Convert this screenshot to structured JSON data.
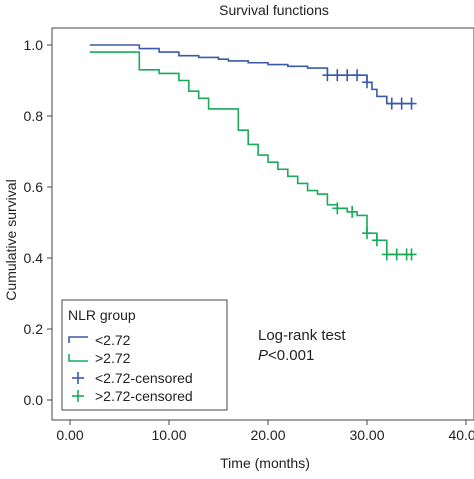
{
  "chart_data": {
    "type": "line",
    "subtype": "kaplan-meier",
    "title": "Survival functions",
    "xlabel": "Time (months)",
    "ylabel": "Cumulative survival",
    "xlim": [
      0,
      40
    ],
    "ylim": [
      0,
      1
    ],
    "x_ticks": [
      "0.00",
      "10.00",
      "20.00",
      "30.00",
      "40.00"
    ],
    "y_ticks": [
      "0.0",
      "0.2",
      "0.4",
      "0.6",
      "0.8",
      "1.0"
    ],
    "grid": false,
    "legend": {
      "title": "NLR group",
      "placement": "bottom-left",
      "entries": [
        "<2.72",
        ">2.72",
        "<2.72-censored",
        ">2.72-censored"
      ]
    },
    "annotation": {
      "line1": "Log-rank test",
      "p_label": "P",
      "p_value": "<0.001"
    },
    "series": [
      {
        "name": "<2.72",
        "color": "#3a5aa8",
        "steps": [
          [
            2,
            1.0
          ],
          [
            7,
            0.99
          ],
          [
            9,
            0.98
          ],
          [
            11,
            0.97
          ],
          [
            13,
            0.965
          ],
          [
            15,
            0.96
          ],
          [
            16,
            0.955
          ],
          [
            18,
            0.95
          ],
          [
            20,
            0.945
          ],
          [
            22,
            0.94
          ],
          [
            24,
            0.935
          ],
          [
            26,
            0.915
          ],
          [
            27,
            0.915
          ],
          [
            28,
            0.915
          ],
          [
            29,
            0.915
          ],
          [
            30,
            0.915
          ],
          [
            30,
            0.895
          ],
          [
            30.5,
            0.875
          ],
          [
            31,
            0.855
          ],
          [
            32,
            0.835
          ],
          [
            34.5,
            0.835
          ]
        ],
        "censored": [
          26,
          27,
          28,
          29,
          30,
          32.5,
          33.5,
          34.5
        ]
      },
      {
        "name": ">2.72",
        "color": "#1aaa5a",
        "steps": [
          [
            2,
            0.98
          ],
          [
            7,
            0.98
          ],
          [
            7,
            0.93
          ],
          [
            9,
            0.92
          ],
          [
            11,
            0.9
          ],
          [
            12,
            0.87
          ],
          [
            13,
            0.85
          ],
          [
            14,
            0.82
          ],
          [
            17,
            0.8
          ],
          [
            17,
            0.76
          ],
          [
            18,
            0.72
          ],
          [
            19,
            0.69
          ],
          [
            20,
            0.67
          ],
          [
            21,
            0.65
          ],
          [
            22,
            0.63
          ],
          [
            23,
            0.61
          ],
          [
            24,
            0.59
          ],
          [
            25,
            0.58
          ],
          [
            26,
            0.55
          ],
          [
            27,
            0.54
          ],
          [
            28,
            0.53
          ],
          [
            29,
            0.52
          ],
          [
            30,
            0.5
          ],
          [
            30,
            0.47
          ],
          [
            31,
            0.45
          ],
          [
            32,
            0.43
          ],
          [
            32,
            0.41
          ],
          [
            34.5,
            0.41
          ]
        ],
        "censored": [
          27,
          28.5,
          30,
          31,
          32,
          33,
          34,
          34.5
        ]
      }
    ]
  }
}
